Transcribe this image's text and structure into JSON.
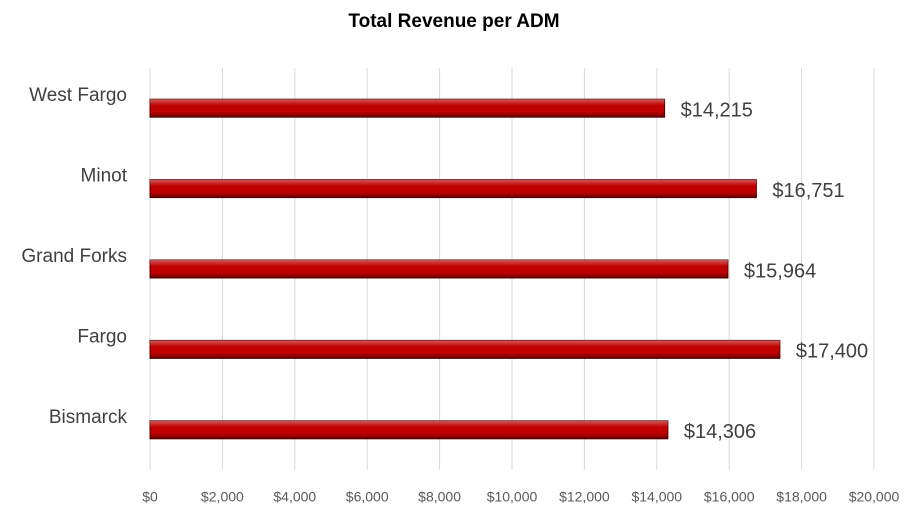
{
  "chart_data": {
    "type": "bar",
    "orientation": "horizontal",
    "title": "Total Revenue per ADM",
    "categories": [
      "West Fargo",
      "Minot",
      "Grand Forks",
      "Fargo",
      "Bismarck"
    ],
    "values": [
      14215,
      16751,
      15964,
      17400,
      14306
    ],
    "value_labels": [
      "$14,215",
      "$16,751",
      "$15,964",
      "$17,400",
      "$14,306"
    ],
    "color": "#c00000",
    "xlim": [
      0,
      20000
    ],
    "xticks": [
      {
        "value": 0,
        "label": "$0"
      },
      {
        "value": 2000,
        "label": "$2,000"
      },
      {
        "value": 4000,
        "label": "$4,000"
      },
      {
        "value": 6000,
        "label": "$6,000"
      },
      {
        "value": 8000,
        "label": "$8,000"
      },
      {
        "value": 10000,
        "label": "$10,000"
      },
      {
        "value": 12000,
        "label": "$12,000"
      },
      {
        "value": 14000,
        "label": "$14,000"
      },
      {
        "value": 16000,
        "label": "$16,000"
      },
      {
        "value": 18000,
        "label": "$18,000"
      },
      {
        "value": 20000,
        "label": "$20,000"
      }
    ],
    "grid": true
  }
}
